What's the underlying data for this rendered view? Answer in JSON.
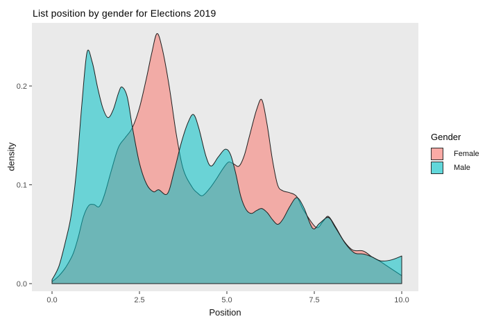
{
  "title": "List position by gender for Elections 2019",
  "legend": {
    "title": "Gender",
    "items": [
      {
        "label": "Female",
        "color": "#F8766D"
      },
      {
        "label": "Male",
        "color": "#00BFC4"
      }
    ]
  },
  "colors": {
    "page_background": "#FFFFFF",
    "panel_background": "#EAEAEA",
    "female_fill": "#F8766D",
    "male_fill": "#00BFC4",
    "fill_alpha": 0.55,
    "curve_stroke": "#1F1F1F",
    "tick_mark": "#333333",
    "tick_label": "#4D4D4D",
    "text": "#000000"
  },
  "chart_data": {
    "type": "area",
    "subtype": "overlapping-density",
    "title": "List position by gender for Elections 2019",
    "xlabel": "Position",
    "ylabel": "density",
    "x_ticks": [
      0.0,
      2.5,
      5.0,
      7.5,
      10.0
    ],
    "x_tick_labels": [
      "0.0",
      "2.5",
      "5.0",
      "7.5",
      "10.0"
    ],
    "y_ticks": [
      0.0,
      0.1,
      0.2
    ],
    "y_tick_labels": [
      "0.0",
      "0.1",
      "0.2"
    ],
    "xlim": [
      -0.57,
      10.48
    ],
    "ylim": [
      -0.008,
      0.264
    ],
    "grid": false,
    "legend_position": "right",
    "series": [
      {
        "name": "Female",
        "color": "#F8766D",
        "points": [
          [
            0.0,
            0.002
          ],
          [
            0.2,
            0.008
          ],
          [
            0.4,
            0.017
          ],
          [
            0.6,
            0.03
          ],
          [
            0.75,
            0.047
          ],
          [
            0.9,
            0.068
          ],
          [
            1.05,
            0.079
          ],
          [
            1.2,
            0.08
          ],
          [
            1.35,
            0.078
          ],
          [
            1.5,
            0.09
          ],
          [
            1.7,
            0.115
          ],
          [
            1.9,
            0.138
          ],
          [
            2.1,
            0.148
          ],
          [
            2.3,
            0.158
          ],
          [
            2.5,
            0.178
          ],
          [
            2.7,
            0.208
          ],
          [
            2.85,
            0.233
          ],
          [
            3.0,
            0.253
          ],
          [
            3.15,
            0.238
          ],
          [
            3.35,
            0.2
          ],
          [
            3.55,
            0.152
          ],
          [
            3.75,
            0.116
          ],
          [
            4.0,
            0.098
          ],
          [
            4.15,
            0.092
          ],
          [
            4.3,
            0.089
          ],
          [
            4.5,
            0.096
          ],
          [
            4.7,
            0.106
          ],
          [
            4.9,
            0.117
          ],
          [
            5.05,
            0.123
          ],
          [
            5.2,
            0.121
          ],
          [
            5.35,
            0.119
          ],
          [
            5.5,
            0.13
          ],
          [
            5.65,
            0.15
          ],
          [
            5.85,
            0.176
          ],
          [
            6.0,
            0.186
          ],
          [
            6.15,
            0.161
          ],
          [
            6.3,
            0.126
          ],
          [
            6.45,
            0.1
          ],
          [
            6.6,
            0.094
          ],
          [
            6.8,
            0.092
          ],
          [
            7.0,
            0.088
          ],
          [
            7.2,
            0.074
          ],
          [
            7.55,
            0.057
          ],
          [
            7.75,
            0.063
          ],
          [
            7.9,
            0.068
          ],
          [
            8.1,
            0.058
          ],
          [
            8.35,
            0.043
          ],
          [
            8.6,
            0.034
          ],
          [
            8.9,
            0.033
          ],
          [
            9.15,
            0.027
          ],
          [
            9.4,
            0.022
          ],
          [
            9.7,
            0.015
          ],
          [
            10.0,
            0.008
          ]
        ]
      },
      {
        "name": "Male",
        "color": "#00BFC4",
        "points": [
          [
            0.0,
            0.004
          ],
          [
            0.2,
            0.018
          ],
          [
            0.4,
            0.045
          ],
          [
            0.55,
            0.07
          ],
          [
            0.7,
            0.115
          ],
          [
            0.85,
            0.18
          ],
          [
            1.0,
            0.234
          ],
          [
            1.15,
            0.224
          ],
          [
            1.3,
            0.199
          ],
          [
            1.45,
            0.178
          ],
          [
            1.6,
            0.168
          ],
          [
            1.75,
            0.176
          ],
          [
            1.9,
            0.193
          ],
          [
            2.0,
            0.199
          ],
          [
            2.15,
            0.189
          ],
          [
            2.3,
            0.158
          ],
          [
            2.5,
            0.122
          ],
          [
            2.7,
            0.101
          ],
          [
            2.9,
            0.093
          ],
          [
            3.05,
            0.095
          ],
          [
            3.3,
            0.091
          ],
          [
            3.5,
            0.115
          ],
          [
            3.7,
            0.143
          ],
          [
            3.9,
            0.164
          ],
          [
            4.05,
            0.171
          ],
          [
            4.2,
            0.157
          ],
          [
            4.4,
            0.129
          ],
          [
            4.55,
            0.119
          ],
          [
            4.75,
            0.128
          ],
          [
            4.95,
            0.136
          ],
          [
            5.1,
            0.131
          ],
          [
            5.25,
            0.112
          ],
          [
            5.4,
            0.088
          ],
          [
            5.55,
            0.075
          ],
          [
            5.7,
            0.071
          ],
          [
            5.85,
            0.074
          ],
          [
            6.0,
            0.076
          ],
          [
            6.15,
            0.072
          ],
          [
            6.3,
            0.065
          ],
          [
            6.45,
            0.06
          ],
          [
            6.6,
            0.065
          ],
          [
            6.8,
            0.078
          ],
          [
            7.0,
            0.087
          ],
          [
            7.2,
            0.077
          ],
          [
            7.45,
            0.056
          ],
          [
            7.65,
            0.061
          ],
          [
            7.9,
            0.067
          ],
          [
            8.1,
            0.057
          ],
          [
            8.4,
            0.04
          ],
          [
            8.65,
            0.031
          ],
          [
            8.9,
            0.03
          ],
          [
            9.15,
            0.027
          ],
          [
            9.4,
            0.023
          ],
          [
            9.7,
            0.024
          ],
          [
            10.0,
            0.028
          ]
        ]
      }
    ]
  }
}
